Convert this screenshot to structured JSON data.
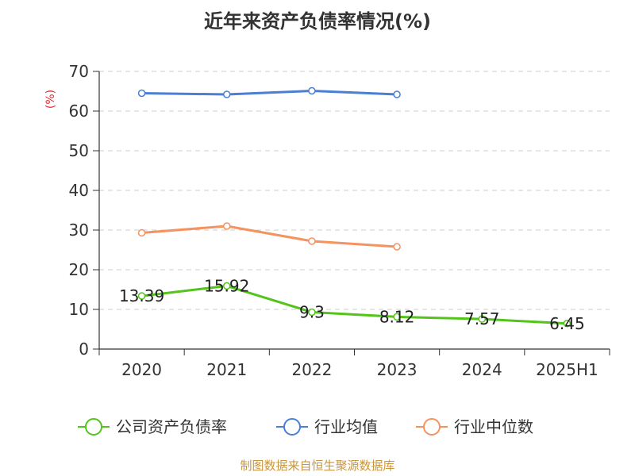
{
  "chart_data": {
    "type": "line",
    "title": "近年来资产负债率情况(%)",
    "ylabel": "(%)",
    "xlabel": "",
    "categories": [
      "2020",
      "2021",
      "2022",
      "2023",
      "2024",
      "2025H1"
    ],
    "ylim": [
      0,
      70
    ],
    "yticks": [
      0,
      10,
      20,
      30,
      40,
      50,
      60,
      70
    ],
    "grid": true,
    "legend_position": "bottom",
    "series": [
      {
        "name": "公司资产负债率",
        "color": "#52c41a",
        "values": [
          13.39,
          15.92,
          9.3,
          8.12,
          7.57,
          6.45
        ],
        "labels": [
          "13.39",
          "15.92",
          "9.3",
          "8.12",
          "7.57",
          "6.45"
        ]
      },
      {
        "name": "行业均值",
        "color": "#4a7fd4",
        "values": [
          64.5,
          64.2,
          65.1,
          64.2,
          null,
          null
        ]
      },
      {
        "name": "行业中位数",
        "color": "#f4935f",
        "values": [
          29.3,
          31.0,
          27.2,
          25.8,
          null,
          null
        ]
      }
    ]
  },
  "source": "制图数据来自恒生聚源数据库",
  "ylabel_color": "#e8252b",
  "source_color": "#c8963c"
}
